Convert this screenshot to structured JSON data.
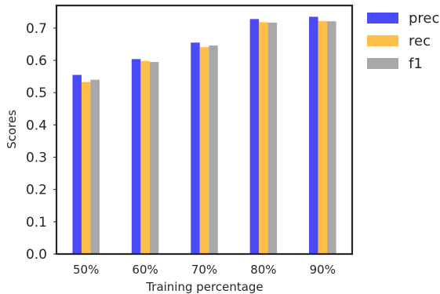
{
  "chart_data": {
    "type": "bar",
    "title": "",
    "xlabel": "Training percentage",
    "ylabel": "Scores",
    "categories": [
      "50%",
      "60%",
      "70%",
      "80%",
      "90%"
    ],
    "series": [
      {
        "name": "prec",
        "color": "#4a4af7",
        "values": [
          0.555,
          0.604,
          0.655,
          0.728,
          0.735
        ]
      },
      {
        "name": "rec",
        "color": "#ffbe4a",
        "values": [
          0.533,
          0.598,
          0.641,
          0.718,
          0.722
        ]
      },
      {
        "name": "f1",
        "color": "#a8a8a8",
        "values": [
          0.54,
          0.595,
          0.646,
          0.717,
          0.721
        ]
      }
    ],
    "yticks": [
      0.0,
      0.1,
      0.2,
      0.3,
      0.4,
      0.5,
      0.6,
      0.7
    ],
    "ylim": [
      0,
      0.77
    ],
    "grid": false,
    "legend_position": "outside-top-right"
  }
}
